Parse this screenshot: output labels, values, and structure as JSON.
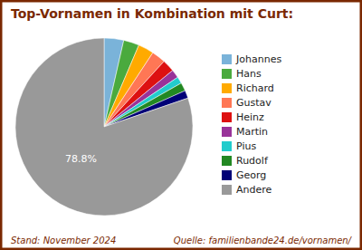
{
  "chart_data": {
    "type": "pie",
    "title": "Top-Vornamen in Kombination mit Curt:",
    "categories": [
      "Johannes",
      "Hans",
      "Richard",
      "Gustav",
      "Heinz",
      "Martin",
      "Pius",
      "Rudolf",
      "Georg",
      "Andere"
    ],
    "values": [
      3.5,
      2.8,
      2.8,
      2.5,
      2.2,
      1.5,
      1.2,
      1.5,
      1.4,
      78.8
    ],
    "value_labels": [
      null,
      null,
      null,
      null,
      null,
      null,
      null,
      null,
      null,
      "78.8%"
    ],
    "colors": [
      "#7ab3d9",
      "#4aaa3e",
      "#ffaa00",
      "#ff7755",
      "#dd1111",
      "#993399",
      "#22cccc",
      "#228822",
      "#000077",
      "#999999"
    ],
    "legend": "right",
    "annotations": [
      "Stand: November 2024",
      "Quelle: familienbande24.de/vornamen/"
    ]
  }
}
